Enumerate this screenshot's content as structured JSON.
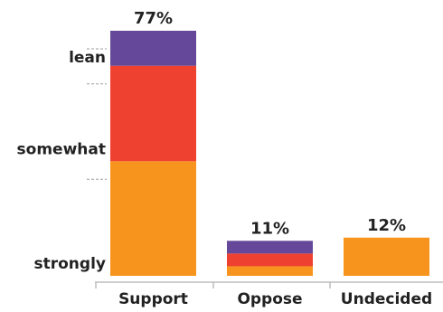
{
  "chart_data": {
    "type": "bar",
    "stacked": true,
    "title": "",
    "xlabel": "",
    "ylabel": "",
    "ylim": [
      0,
      80
    ],
    "grid": false,
    "legend": "none",
    "categories": [
      "Support",
      "Oppose",
      "Undecided"
    ],
    "totals": [
      "77%",
      "11%",
      "12%"
    ],
    "series": [
      {
        "name": "strongly",
        "color": "#f7941d",
        "values": [
          36,
          3,
          12
        ]
      },
      {
        "name": "somewhat",
        "color": "#ef4130",
        "values": [
          30,
          4,
          0
        ]
      },
      {
        "name": "lean",
        "color": "#66489a",
        "values": [
          11,
          4,
          0
        ]
      }
    ]
  }
}
